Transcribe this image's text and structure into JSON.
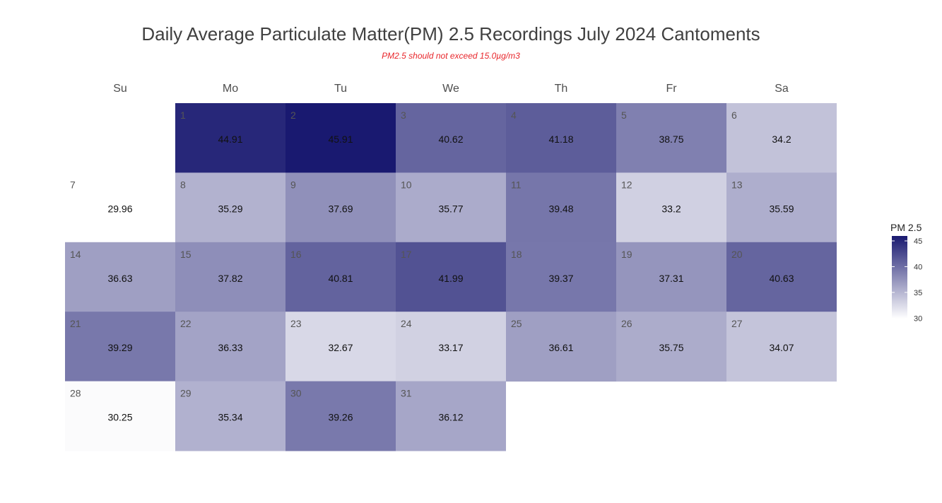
{
  "chart_data": {
    "type": "heatmap",
    "title": "Daily Average Particulate Matter(PM) 2.5 Recordings July 2024 Cantoments",
    "subtitle": "PM2.5 should not exceed 15.0µg/m3",
    "weekdays": [
      "Su",
      "Mo",
      "Tu",
      "We",
      "Th",
      "Fr",
      "Sa"
    ],
    "first_weekday_index": 1,
    "days": [
      1,
      2,
      3,
      4,
      5,
      6,
      7,
      8,
      9,
      10,
      11,
      12,
      13,
      14,
      15,
      16,
      17,
      18,
      19,
      20,
      21,
      22,
      23,
      24,
      25,
      26,
      27,
      28,
      29,
      30,
      31
    ],
    "values": [
      "44.91",
      "45.91",
      "40.62",
      "41.18",
      "38.75",
      "34.2",
      "29.96",
      "35.29",
      "37.69",
      "35.77",
      "39.48",
      "33.2",
      "35.59",
      "36.63",
      "37.82",
      "40.81",
      "41.99",
      "39.37",
      "37.31",
      "40.63",
      "39.29",
      "36.33",
      "32.67",
      "33.17",
      "36.61",
      "35.75",
      "34.07",
      "30.25",
      "35.34",
      "39.26",
      "36.12"
    ],
    "legend": {
      "title": "PM 2.5",
      "ticks": [
        "30",
        "35",
        "40",
        "45"
      ],
      "tick_values": [
        30,
        35,
        40,
        45
      ],
      "range": [
        29.96,
        45.91
      ]
    },
    "colors": {
      "low": "#ffffff",
      "high": "#191970"
    }
  }
}
